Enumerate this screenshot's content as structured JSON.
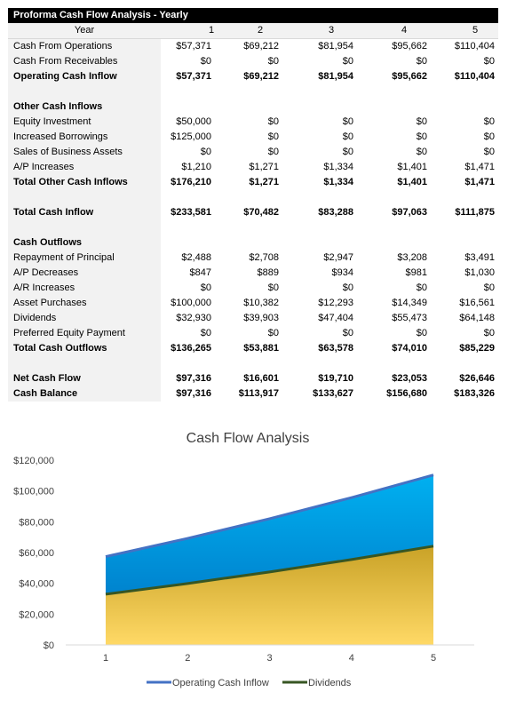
{
  "table": {
    "title": "Proforma Cash Flow Analysis - Yearly",
    "year_label": "Year",
    "years": [
      "1",
      "2",
      "3",
      "4",
      "5"
    ],
    "rows": [
      {
        "label": "Cash From Operations",
        "values": [
          "$57,371",
          "$69,212",
          "$81,954",
          "$95,662",
          "$110,404"
        ],
        "bold": false
      },
      {
        "label": "Cash From Receivables",
        "values": [
          "$0",
          "$0",
          "$0",
          "$0",
          "$0"
        ],
        "bold": false
      },
      {
        "label": "Operating Cash Inflow",
        "values": [
          "$57,371",
          "$69,212",
          "$81,954",
          "$95,662",
          "$110,404"
        ],
        "bold": true
      },
      {
        "label": "",
        "values": [
          "",
          "",
          "",
          "",
          ""
        ],
        "bold": false
      },
      {
        "label": "Other Cash Inflows",
        "values": [
          "",
          "",
          "",
          "",
          ""
        ],
        "bold": true
      },
      {
        "label": "Equity Investment",
        "values": [
          "$50,000",
          "$0",
          "$0",
          "$0",
          "$0"
        ],
        "bold": false
      },
      {
        "label": "Increased Borrowings",
        "values": [
          "$125,000",
          "$0",
          "$0",
          "$0",
          "$0"
        ],
        "bold": false
      },
      {
        "label": "Sales of Business Assets",
        "values": [
          "$0",
          "$0",
          "$0",
          "$0",
          "$0"
        ],
        "bold": false
      },
      {
        "label": "A/P Increases",
        "values": [
          "$1,210",
          "$1,271",
          "$1,334",
          "$1,401",
          "$1,471"
        ],
        "bold": false
      },
      {
        "label": "Total Other Cash Inflows",
        "values": [
          "$176,210",
          "$1,271",
          "$1,334",
          "$1,401",
          "$1,471"
        ],
        "bold": true
      },
      {
        "label": "",
        "values": [
          "",
          "",
          "",
          "",
          ""
        ],
        "bold": false
      },
      {
        "label": "Total Cash Inflow",
        "values": [
          "$233,581",
          "$70,482",
          "$83,288",
          "$97,063",
          "$111,875"
        ],
        "bold": true
      },
      {
        "label": "",
        "values": [
          "",
          "",
          "",
          "",
          ""
        ],
        "bold": false
      },
      {
        "label": "Cash Outflows",
        "values": [
          "",
          "",
          "",
          "",
          ""
        ],
        "bold": true
      },
      {
        "label": "Repayment of Principal",
        "values": [
          "$2,488",
          "$2,708",
          "$2,947",
          "$3,208",
          "$3,491"
        ],
        "bold": false
      },
      {
        "label": "A/P Decreases",
        "values": [
          "$847",
          "$889",
          "$934",
          "$981",
          "$1,030"
        ],
        "bold": false
      },
      {
        "label": "A/R Increases",
        "values": [
          "$0",
          "$0",
          "$0",
          "$0",
          "$0"
        ],
        "bold": false
      },
      {
        "label": "Asset Purchases",
        "values": [
          "$100,000",
          "$10,382",
          "$12,293",
          "$14,349",
          "$16,561"
        ],
        "bold": false
      },
      {
        "label": "Dividends",
        "values": [
          "$32,930",
          "$39,903",
          "$47,404",
          "$55,473",
          "$64,148"
        ],
        "bold": false
      },
      {
        "label": "Preferred Equity Payment",
        "values": [
          "$0",
          "$0",
          "$0",
          "$0",
          "$0"
        ],
        "bold": false
      },
      {
        "label": "Total Cash Outflows",
        "values": [
          "$136,265",
          "$53,881",
          "$63,578",
          "$74,010",
          "$85,229"
        ],
        "bold": true
      },
      {
        "label": "",
        "values": [
          "",
          "",
          "",
          "",
          ""
        ],
        "bold": false
      },
      {
        "label": "Net Cash Flow",
        "values": [
          "$97,316",
          "$16,601",
          "$19,710",
          "$23,053",
          "$26,646"
        ],
        "bold": true
      },
      {
        "label": "Cash Balance",
        "values": [
          "$97,316",
          "$113,917",
          "$133,627",
          "$156,680",
          "$183,326"
        ],
        "bold": true
      }
    ]
  },
  "chart_data": {
    "type": "area",
    "title": "Cash Flow Analysis",
    "x": [
      1,
      2,
      3,
      4,
      5
    ],
    "series": [
      {
        "name": "Operating Cash Inflow",
        "values": [
          57371,
          69212,
          81954,
          95662,
          110404
        ],
        "color": "#4472c4",
        "fill_top": "#00b0f0",
        "fill_bottom": "#0070c0"
      },
      {
        "name": "Dividends",
        "values": [
          32930,
          39903,
          47404,
          55473,
          64148
        ],
        "color": "#375623",
        "fill_top": "#c9a227",
        "fill_bottom": "#ffd966"
      }
    ],
    "ylim": [
      0,
      120000
    ],
    "yticks": [
      0,
      20000,
      40000,
      60000,
      80000,
      100000,
      120000
    ],
    "ytick_labels": [
      "$0",
      "$20,000",
      "$40,000",
      "$60,000",
      "$80,000",
      "$100,000",
      "$120,000"
    ],
    "xtick_labels": [
      "1",
      "2",
      "3",
      "4",
      "5"
    ],
    "legend_position": "bottom",
    "grid": false
  }
}
